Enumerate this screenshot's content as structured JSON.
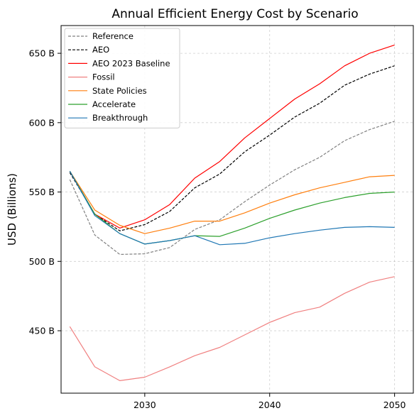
{
  "chart_data": {
    "type": "line",
    "title": "Annual Efficient Energy Cost by Scenario",
    "xlabel": "",
    "ylabel": "USD (Billions)",
    "x": [
      2024,
      2026,
      2028,
      2030,
      2032,
      2034,
      2036,
      2038,
      2040,
      2042,
      2044,
      2046,
      2048,
      2050
    ],
    "xlim": [
      2023.3,
      2051.5
    ],
    "ylim": [
      405,
      670
    ],
    "xticks": [
      2030,
      2040,
      2050
    ],
    "xtick_labels": [
      "2030",
      "2040",
      "2050"
    ],
    "yticks": [
      450,
      500,
      550,
      600,
      650
    ],
    "ytick_labels": [
      "450 B",
      "500 B",
      "550 B",
      "600 B",
      "650 B"
    ],
    "grid": true,
    "legend_position": "top-left",
    "series": [
      {
        "name": "Reference",
        "color": "#808080",
        "dashed": true,
        "values": [
          559,
          519,
          505,
          505.5,
          510,
          523,
          530,
          543,
          555,
          566,
          575,
          587,
          595,
          601
        ]
      },
      {
        "name": "AEO",
        "color": "#000000",
        "dashed": true,
        "values": [
          564,
          534,
          522,
          526.5,
          536,
          553,
          563,
          579,
          591,
          604,
          614,
          627,
          635,
          641
        ]
      },
      {
        "name": "AEO 2023 Baseline",
        "color": "#ff0000",
        "dashed": false,
        "values": [
          565,
          534,
          524,
          530,
          541,
          560,
          572,
          589,
          603,
          617,
          628,
          641,
          650,
          656
        ]
      },
      {
        "name": "Fossil",
        "color": "#f08080",
        "dashed": false,
        "values": [
          453,
          424,
          414,
          416.5,
          424,
          432,
          438,
          447,
          456,
          463,
          467,
          477,
          485,
          489
        ]
      },
      {
        "name": "State Policies",
        "color": "#ff7f0e",
        "dashed": false,
        "values": [
          565,
          537,
          526,
          520,
          524,
          529,
          529,
          535,
          542,
          548,
          553,
          557,
          561,
          562
        ]
      },
      {
        "name": "Accelerate",
        "color": "#2ca02c",
        "dashed": false,
        "values": [
          565,
          534,
          520,
          512.5,
          515,
          518.5,
          518,
          524,
          531,
          537,
          542,
          546,
          549,
          550
        ]
      },
      {
        "name": "Breakthrough",
        "color": "#1f77b4",
        "dashed": false,
        "values": [
          565,
          533,
          520,
          512.5,
          515,
          518.5,
          512,
          513,
          517,
          520,
          522.5,
          524.5,
          525,
          524.5
        ]
      }
    ]
  }
}
